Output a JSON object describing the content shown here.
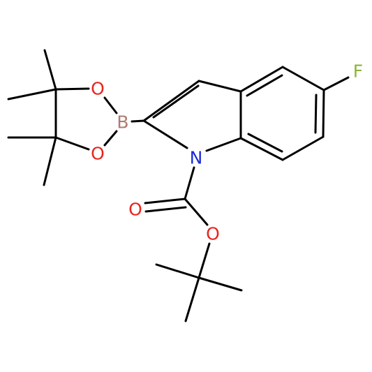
{
  "atoms": [
    "F",
    "B",
    "O",
    "O",
    "N",
    "O",
    "O"
  ]
}
